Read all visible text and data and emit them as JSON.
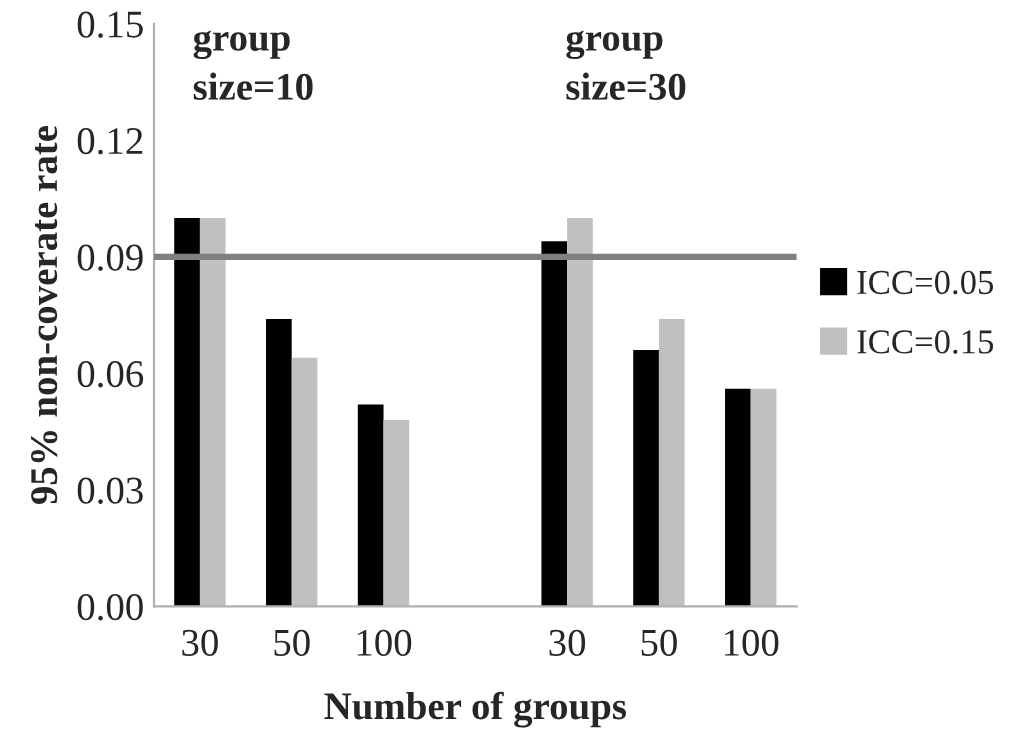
{
  "chart_data": {
    "type": "bar",
    "ylabel": "95% non-coverate rate",
    "xlabel": "Number of groups",
    "categories": [
      "30",
      "50",
      "100",
      null,
      "30",
      "50",
      "100"
    ],
    "series": [
      {
        "name": "ICC=0.05",
        "color": "#000000",
        "values": [
          0.1,
          0.074,
          0.052,
          null,
          0.094,
          0.066,
          0.056
        ]
      },
      {
        "name": "ICC=0.15",
        "color": "#c0c0c0",
        "values": [
          0.1,
          0.064,
          0.048,
          null,
          0.1,
          0.074,
          0.056
        ]
      }
    ],
    "ylim": [
      0,
      0.15
    ],
    "yticks": [
      {
        "value": 0,
        "label": "0.00"
      },
      {
        "value": 0.03,
        "label": "0.03"
      },
      {
        "value": 0.06,
        "label": "0.06"
      },
      {
        "value": 0.09,
        "label": "0.09"
      },
      {
        "value": 0.12,
        "label": "0.12"
      },
      {
        "value": 0.15,
        "label": "0.15"
      }
    ],
    "ref_lines": [
      {
        "axis": "y",
        "value": 0.09,
        "color": "#808080"
      }
    ],
    "annotations": [
      "group\nsize=10",
      "group\nsize=30"
    ],
    "legend": "right",
    "grid": false
  }
}
